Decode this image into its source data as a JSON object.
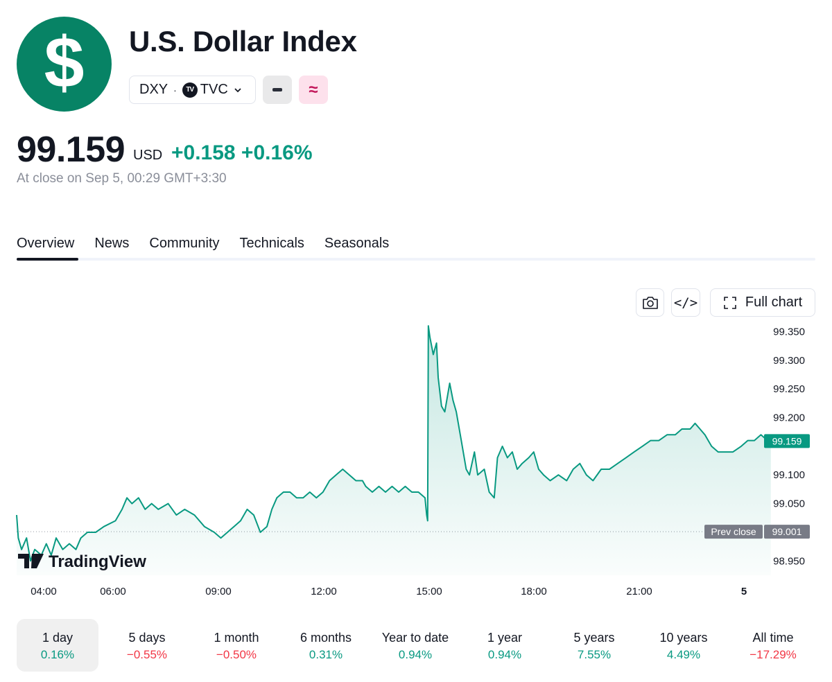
{
  "header": {
    "logo_glyph": "$",
    "logo_color": "#078365",
    "title": "U.S. Dollar Index",
    "symbol": "DXY",
    "separator": "·",
    "exchange_badge": "TV",
    "exchange": "TVC",
    "chip_icons": [
      "chevron-down-icon",
      "minus-icon",
      "approx-icon"
    ],
    "approx_glyph": "≈"
  },
  "quote": {
    "price": "99.159",
    "currency": "USD",
    "change": "+0.158 +0.16%",
    "note": "At close on Sep 5, 00:29 GMT+3:30"
  },
  "tabs": [
    {
      "label": "Overview"
    },
    {
      "label": "News"
    },
    {
      "label": "Community"
    },
    {
      "label": "Technicals"
    },
    {
      "label": "Seasonals"
    }
  ],
  "toolbar": {
    "embed_glyph": "</>",
    "full_chart_label": "Full chart"
  },
  "chart_data": {
    "type": "area",
    "color": "#089981",
    "watermark": "TradingView",
    "x_ticks": [
      "04:00",
      "06:00",
      "09:00",
      "12:00",
      "15:00",
      "18:00",
      "21:00",
      "5"
    ],
    "y_ticks": [
      "99.350",
      "99.300",
      "99.250",
      "99.200",
      "99.100",
      "99.050",
      "98.950"
    ],
    "ylim": [
      98.925,
      99.365
    ],
    "prev_close": {
      "label": "Prev close",
      "value": 99.001,
      "text": "99.001"
    },
    "last": {
      "value": 99.159,
      "text": "99.159"
    },
    "x_units": "hours (open 03:30 = 0)",
    "points": [
      [
        0,
        99.03
      ],
      [
        0.05,
        98.99
      ],
      [
        0.15,
        98.97
      ],
      [
        0.3,
        98.99
      ],
      [
        0.42,
        98.95
      ],
      [
        0.55,
        98.97
      ],
      [
        0.75,
        98.96
      ],
      [
        0.9,
        98.98
      ],
      [
        1.05,
        98.96
      ],
      [
        1.2,
        98.99
      ],
      [
        1.4,
        98.97
      ],
      [
        1.6,
        98.98
      ],
      [
        1.8,
        98.97
      ],
      [
        1.95,
        98.99
      ],
      [
        2.15,
        99.0
      ],
      [
        2.4,
        99.0
      ],
      [
        2.65,
        99.01
      ],
      [
        3.0,
        99.02
      ],
      [
        3.2,
        99.04
      ],
      [
        3.35,
        99.06
      ],
      [
        3.5,
        99.05
      ],
      [
        3.7,
        99.06
      ],
      [
        3.9,
        99.04
      ],
      [
        4.1,
        99.05
      ],
      [
        4.3,
        99.04
      ],
      [
        4.6,
        99.05
      ],
      [
        4.85,
        99.03
      ],
      [
        5.1,
        99.04
      ],
      [
        5.4,
        99.03
      ],
      [
        5.7,
        99.01
      ],
      [
        6.0,
        99.0
      ],
      [
        6.2,
        98.99
      ],
      [
        6.4,
        99.0
      ],
      [
        6.6,
        99.01
      ],
      [
        6.8,
        99.02
      ],
      [
        7.0,
        99.04
      ],
      [
        7.2,
        99.03
      ],
      [
        7.4,
        99.0
      ],
      [
        7.6,
        99.01
      ],
      [
        7.75,
        99.04
      ],
      [
        7.9,
        99.06
      ],
      [
        8.1,
        99.07
      ],
      [
        8.3,
        99.07
      ],
      [
        8.5,
        99.06
      ],
      [
        8.7,
        99.06
      ],
      [
        8.9,
        99.07
      ],
      [
        9.1,
        99.06
      ],
      [
        9.3,
        99.07
      ],
      [
        9.5,
        99.09
      ],
      [
        9.7,
        99.1
      ],
      [
        9.9,
        99.11
      ],
      [
        10.1,
        99.1
      ],
      [
        10.3,
        99.09
      ],
      [
        10.5,
        99.09
      ],
      [
        10.6,
        99.08
      ],
      [
        10.8,
        99.07
      ],
      [
        11.0,
        99.08
      ],
      [
        11.2,
        99.07
      ],
      [
        11.4,
        99.08
      ],
      [
        11.6,
        99.07
      ],
      [
        11.8,
        99.08
      ],
      [
        12.0,
        99.07
      ],
      [
        12.2,
        99.07
      ],
      [
        12.4,
        99.06
      ],
      [
        12.45,
        99.03
      ],
      [
        12.48,
        99.02
      ],
      [
        12.5,
        99.36
      ],
      [
        12.55,
        99.34
      ],
      [
        12.65,
        99.31
      ],
      [
        12.75,
        99.33
      ],
      [
        12.8,
        99.27
      ],
      [
        12.9,
        99.22
      ],
      [
        13.0,
        99.21
      ],
      [
        13.15,
        99.26
      ],
      [
        13.25,
        99.23
      ],
      [
        13.35,
        99.21
      ],
      [
        13.5,
        99.16
      ],
      [
        13.65,
        99.11
      ],
      [
        13.75,
        99.1
      ],
      [
        13.9,
        99.14
      ],
      [
        14.0,
        99.1
      ],
      [
        14.2,
        99.11
      ],
      [
        14.35,
        99.07
      ],
      [
        14.5,
        99.06
      ],
      [
        14.6,
        99.13
      ],
      [
        14.75,
        99.15
      ],
      [
        14.9,
        99.13
      ],
      [
        15.05,
        99.14
      ],
      [
        15.2,
        99.11
      ],
      [
        15.35,
        99.12
      ],
      [
        15.55,
        99.13
      ],
      [
        15.7,
        99.14
      ],
      [
        15.85,
        99.11
      ],
      [
        16.0,
        99.1
      ],
      [
        16.2,
        99.09
      ],
      [
        16.45,
        99.1
      ],
      [
        16.7,
        99.09
      ],
      [
        16.9,
        99.11
      ],
      [
        17.1,
        99.12
      ],
      [
        17.3,
        99.1
      ],
      [
        17.5,
        99.09
      ],
      [
        17.75,
        99.11
      ],
      [
        18.0,
        99.11
      ],
      [
        18.25,
        99.12
      ],
      [
        18.5,
        99.13
      ],
      [
        18.75,
        99.14
      ],
      [
        19.0,
        99.15
      ],
      [
        19.25,
        99.16
      ],
      [
        19.5,
        99.16
      ],
      [
        19.75,
        99.17
      ],
      [
        20.0,
        99.17
      ],
      [
        20.2,
        99.18
      ],
      [
        20.45,
        99.18
      ],
      [
        20.6,
        99.19
      ],
      [
        20.75,
        99.18
      ],
      [
        20.9,
        99.17
      ],
      [
        21.1,
        99.15
      ],
      [
        21.3,
        99.14
      ],
      [
        21.55,
        99.14
      ],
      [
        21.75,
        99.14
      ],
      [
        22.0,
        99.15
      ],
      [
        22.2,
        99.16
      ],
      [
        22.4,
        99.16
      ],
      [
        22.6,
        99.17
      ],
      [
        22.8,
        99.16
      ],
      [
        22.9,
        99.159
      ]
    ]
  },
  "ranges": [
    {
      "label": "1 day",
      "pct": "0.16%",
      "dir": "pos",
      "active": true
    },
    {
      "label": "5 days",
      "pct": "−0.55%",
      "dir": "neg"
    },
    {
      "label": "1 month",
      "pct": "−0.50%",
      "dir": "neg"
    },
    {
      "label": "6 months",
      "pct": "0.31%",
      "dir": "pos"
    },
    {
      "label": "Year to date",
      "pct": "0.94%",
      "dir": "pos"
    },
    {
      "label": "1 year",
      "pct": "0.94%",
      "dir": "pos"
    },
    {
      "label": "5 years",
      "pct": "7.55%",
      "dir": "pos"
    },
    {
      "label": "10 years",
      "pct": "4.49%",
      "dir": "pos"
    },
    {
      "label": "All time",
      "pct": "−17.29%",
      "dir": "neg"
    }
  ]
}
